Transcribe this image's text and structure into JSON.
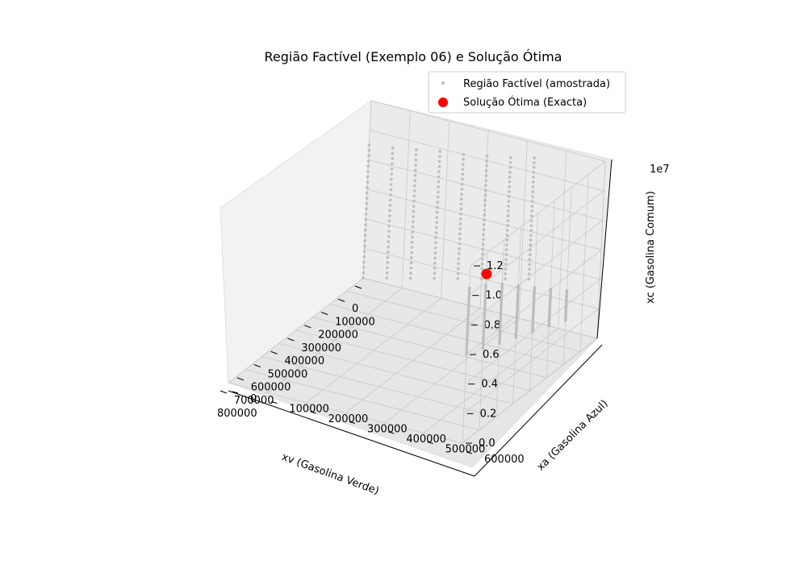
{
  "chart_data": {
    "type": "scatter",
    "projection": "3d",
    "title": "Região Factível (Exemplo 06) e Solução Ótima",
    "xlabel": "xv (Gasolina Verde)",
    "ylabel": "xa (Gasolina Azul)",
    "zlabel": "xc (Gasolina Comum)",
    "z_offset_label": "1e7",
    "xlim": [
      0,
      800000
    ],
    "ylim": [
      0,
      600000
    ],
    "zlim": [
      0,
      12000000
    ],
    "x_ticks": [
      "0",
      "100000",
      "200000",
      "300000",
      "400000",
      "500000",
      "600000",
      "700000",
      "800000"
    ],
    "y_ticks": [
      "0",
      "100000",
      "200000",
      "300000",
      "400000",
      "500000",
      "600000"
    ],
    "z_ticks": [
      "0.0",
      "0.2",
      "0.4",
      "0.6",
      "0.8",
      "1.0",
      "1.2"
    ],
    "grid": true,
    "legend_position": "top-right",
    "series": [
      {
        "name": "Região Factível (amostrada)",
        "color": "#bdbdbd",
        "marker_size": "small",
        "columns": [
          {
            "x": 0,
            "y": 0,
            "z_min": 0,
            "z_max": 9000000
          },
          {
            "x": 0,
            "y": 60000,
            "z_min": 400000,
            "z_max": 9200000
          },
          {
            "x": 0,
            "y": 120000,
            "z_min": 800000,
            "z_max": 9500000
          },
          {
            "x": 0,
            "y": 180000,
            "z_min": 1200000,
            "z_max": 9800000
          },
          {
            "x": 0,
            "y": 240000,
            "z_min": 1600000,
            "z_max": 10000000
          },
          {
            "x": 0,
            "y": 300000,
            "z_min": 2000000,
            "z_max": 10300000
          },
          {
            "x": 0,
            "y": 360000,
            "z_min": 2400000,
            "z_max": 10600000
          },
          {
            "x": 0,
            "y": 420000,
            "z_min": 2800000,
            "z_max": 11000000
          },
          {
            "x": 200000,
            "y": 600000,
            "z_min": 3000000,
            "z_max": 5000000
          },
          {
            "x": 300000,
            "y": 600000,
            "z_min": 3500000,
            "z_max": 6000000
          },
          {
            "x": 400000,
            "y": 600000,
            "z_min": 4000000,
            "z_max": 7000000
          },
          {
            "x": 500000,
            "y": 600000,
            "z_min": 4500000,
            "z_max": 8000000
          },
          {
            "x": 600000,
            "y": 600000,
            "z_min": 5000000,
            "z_max": 9000000
          },
          {
            "x": 700000,
            "y": 600000,
            "z_min": 5500000,
            "z_max": 9800000
          },
          {
            "x": 800000,
            "y": 600000,
            "z_min": 6000000,
            "z_max": 10500000
          }
        ]
      },
      {
        "name": "Solução Ótima (Exacta)",
        "color": "#ff0000",
        "marker_size": "large",
        "points": [
          {
            "x": 800000,
            "y": 600000,
            "z": 12000000
          }
        ]
      }
    ]
  }
}
